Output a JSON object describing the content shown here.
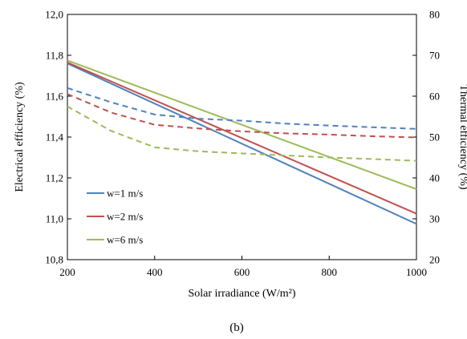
{
  "chart_data": {
    "type": "line",
    "panel_label": "(b)",
    "xlabel": "Solar irradiance (W/m²)",
    "ylabel_left": "Electrical efficiency (%)",
    "ylabel_right": "Thermal efficiency (%)",
    "xlim": [
      200,
      1000
    ],
    "ylim_left": [
      10.8,
      12.0
    ],
    "ylim_right": [
      20,
      80
    ],
    "x_ticks": [
      "200",
      "400",
      "600",
      "800",
      "1000"
    ],
    "y_left_ticks": [
      "10,8",
      "11,0",
      "11,2",
      "11,4",
      "11,6",
      "11,8",
      "12,0"
    ],
    "y_right_ticks": [
      "20",
      "30",
      "40",
      "50",
      "60",
      "70",
      "80"
    ],
    "grid": false,
    "legend_position": "lower-left",
    "series": [
      {
        "name": "w=1 m/s",
        "color": "#4f81bd",
        "axis": "left",
        "style": "solid",
        "x": [
          200,
          1000
        ],
        "y": [
          11.76,
          10.975
        ]
      },
      {
        "name": "w=2 m/s",
        "color": "#c0504d",
        "axis": "left",
        "style": "solid",
        "x": [
          200,
          1000
        ],
        "y": [
          11.765,
          11.025
        ]
      },
      {
        "name": "w=6 m/s",
        "color": "#9bbb59",
        "axis": "left",
        "style": "solid",
        "x": [
          200,
          1000
        ],
        "y": [
          11.775,
          11.145
        ]
      },
      {
        "color": "#4f81bd",
        "axis": "right",
        "style": "dashed",
        "x": [
          200,
          300,
          400,
          500,
          600,
          700,
          800,
          900,
          1000
        ],
        "y": [
          62,
          58.5,
          55.5,
          54.5,
          54,
          53.3,
          52.8,
          52.4,
          52
        ]
      },
      {
        "color": "#c0504d",
        "axis": "right",
        "style": "dashed",
        "x": [
          200,
          300,
          400,
          500,
          600,
          700,
          800,
          900,
          1000
        ],
        "y": [
          60.5,
          56,
          53,
          52.1,
          51.4,
          50.9,
          50.6,
          50.2,
          49.9
        ]
      },
      {
        "color": "#9bbb59",
        "axis": "right",
        "style": "dashed",
        "x": [
          200,
          300,
          400,
          500,
          600,
          700,
          800,
          900,
          1000
        ],
        "y": [
          57.5,
          51.5,
          47.5,
          46.5,
          46,
          45.5,
          45,
          44.6,
          44.2
        ]
      }
    ]
  }
}
